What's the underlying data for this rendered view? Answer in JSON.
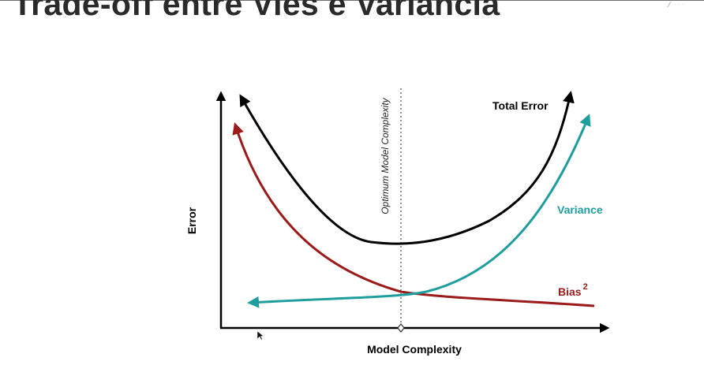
{
  "slide": {
    "title": "Trade-off entre Viés e Variância"
  },
  "diagram": {
    "x_axis_label": "Model Complexity",
    "y_axis_label": "Error",
    "optimum_label": "Optimum Model Complexity",
    "curves": {
      "total_error": {
        "label": "Total Error",
        "color": "#000000"
      },
      "variance": {
        "label": "Variance",
        "color": "#1f9e9e"
      },
      "bias": {
        "label": "Bias",
        "superscript": "2",
        "color": "#9b1b1b"
      }
    }
  }
}
